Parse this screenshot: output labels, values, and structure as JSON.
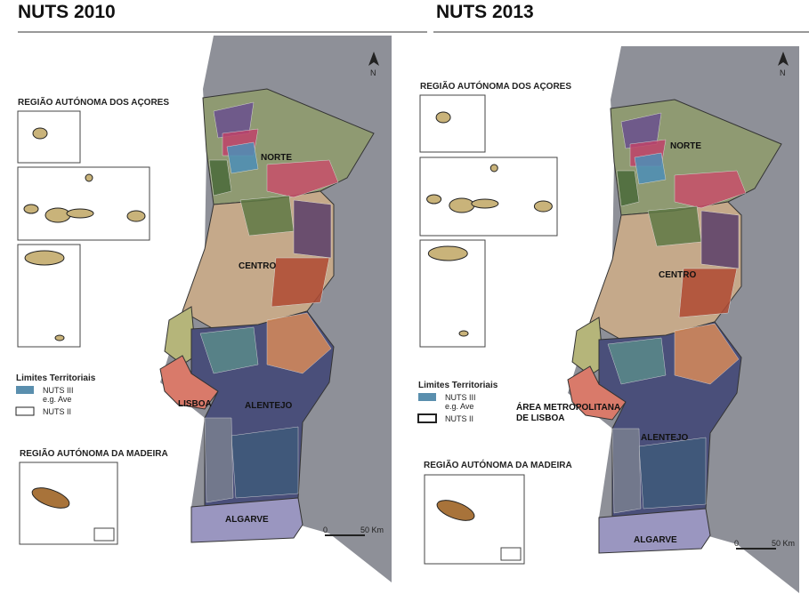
{
  "maps": [
    {
      "title": "NUTS 2010",
      "north": "N",
      "azores_title": "REGIÃO AUTÓNOMA DOS AÇORES",
      "madeira_title": "REGIÃO AUTÓNOMA DA MADEIRA",
      "legend": {
        "title": "Limites Territoriais",
        "items": [
          {
            "label": "NUTS III",
            "note": "e.g. Ave"
          },
          {
            "label": "NUTS II"
          }
        ]
      },
      "regions": [
        "NORTE",
        "CENTRO",
        "LISBOA",
        "ALENTEJO",
        "ALGARVE"
      ],
      "scale": [
        "0",
        "50 Km"
      ]
    },
    {
      "title": "NUTS 2013",
      "north": "N",
      "azores_title": "REGIÃO AUTÓNOMA DOS AÇORES",
      "madeira_title": "REGIÃO AUTÓNOMA DA MADEIRA",
      "legend": {
        "title": "Limites Territoriais",
        "items": [
          {
            "label": "NUTS III",
            "note": "e.g. Ave"
          },
          {
            "label": "NUTS II"
          }
        ]
      },
      "regions": [
        "NORTE",
        "CENTRO",
        "ÁREA METROPOLITANA DE LISBOA",
        "ALENTEJO",
        "ALGARVE"
      ],
      "scale": [
        "0",
        "50 Km"
      ]
    }
  ]
}
